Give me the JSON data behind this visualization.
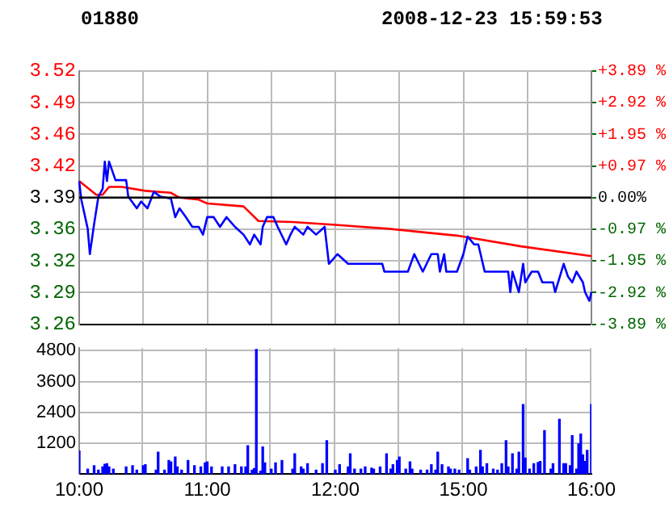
{
  "chart_data": [
    {
      "type": "line",
      "title": "01880",
      "subtitle": "2008-12-23 15:59:53",
      "categories": [
        null,
        null,
        null,
        null,
        null,
        null,
        null,
        null,
        null,
        null,
        null,
        null,
        null,
        null,
        null,
        null,
        null,
        null,
        null,
        null,
        null,
        null,
        null,
        null,
        null,
        null,
        null,
        null,
        null,
        null,
        null,
        null,
        null,
        null,
        null,
        null,
        null,
        null,
        null,
        null,
        null,
        null,
        null,
        null,
        null,
        null,
        null,
        null,
        null,
        null,
        null,
        null,
        null,
        null,
        null,
        null,
        null,
        null,
        null,
        null,
        null,
        null,
        null,
        null,
        null,
        null,
        null,
        null,
        null,
        null,
        null,
        null,
        null,
        null,
        null,
        null,
        null,
        null,
        null,
        null,
        null,
        null,
        null,
        null,
        null,
        null,
        null,
        null,
        null,
        null,
        null,
        null,
        null,
        null,
        null,
        null,
        null,
        null,
        null,
        null,
        null,
        null,
        null,
        null,
        null,
        null,
        null,
        null,
        null,
        null,
        null,
        null,
        null,
        null,
        null,
        null,
        null,
        null,
        null,
        null,
        null,
        null,
        null,
        null,
        null,
        null,
        null,
        null,
        null,
        null,
        null,
        null,
        null,
        null,
        null,
        null,
        null,
        null,
        null,
        null,
        null,
        null,
        null,
        null,
        null,
        null,
        null,
        null,
        null,
        null,
        null,
        null,
        null,
        null,
        null,
        null,
        null,
        null,
        null,
        null,
        null,
        null,
        null,
        null,
        null,
        null,
        null,
        null,
        null,
        null,
        null,
        null,
        null,
        null,
        null,
        null,
        null,
        null,
        null,
        null,
        null,
        null,
        null,
        null,
        null,
        null,
        null,
        null,
        null,
        null,
        null,
        null,
        null,
        null,
        null,
        null,
        null,
        null,
        null,
        null,
        null,
        null,
        null,
        null,
        null,
        null,
        null,
        null,
        null,
        null,
        null,
        null,
        null,
        null,
        null,
        null,
        null,
        null,
        null,
        null,
        null,
        null,
        null,
        null,
        null,
        null,
        null,
        null,
        null,
        null,
        null,
        null,
        null,
        null,
        null,
        null,
        null,
        null,
        null,
        null,
        null
      ],
      "ylim": [
        3.26,
        3.52
      ],
      "yticks": [
        {
          "value": 3.26,
          "label": "3.26"
        },
        {
          "value": 3.2925,
          "label": "3.29"
        },
        {
          "value": 3.325,
          "label": "3.32"
        },
        {
          "value": 3.3575,
          "label": "3.36"
        },
        {
          "value": 3.39,
          "label": "3.39"
        },
        {
          "value": 3.4225,
          "label": "3.42"
        },
        {
          "value": 3.455,
          "label": "3.46"
        },
        {
          "value": 3.4875,
          "label": "3.49"
        },
        {
          "value": 3.52,
          "label": "3.52"
        }
      ],
      "y2lim": [
        -3.89,
        3.89
      ],
      "y2ticks": [
        {
          "value": -3.89,
          "label": "-3.89 %"
        },
        {
          "value": -2.9175,
          "label": "-2.92 %"
        },
        {
          "value": -1.945,
          "label": "-1.95 %"
        },
        {
          "value": -0.9725,
          "label": "-0.97 %"
        },
        {
          "value": 0,
          "label": "0.00%"
        },
        {
          "value": 0.9725,
          "label": "+0.97 %"
        },
        {
          "value": 1.945,
          "label": "+1.95 %"
        },
        {
          "value": 2.9175,
          "label": "+2.92 %"
        },
        {
          "value": 3.89,
          "label": "+3.89 %"
        }
      ],
      "tick_labels": "y",
      "grid": true,
      "marker": "none",
      "ref_lines": [
        {
          "axis": "y",
          "value": 3.39,
          "color": "#000000"
        }
      ],
      "series": [
        {
          "color": "#0000ff",
          "values": [
            3.407,
            3.388,
            null,
            null,
            3.358,
            3.332,
            null,
            3.363,
            null,
            3.391,
            null,
            3.399,
            3.427,
            3.407,
            3.427,
            null,
            null,
            3.408,
            null,
            null,
            null,
            null,
            3.408,
            3.391,
            null,
            null,
            null,
            3.379,
            null,
            3.386,
            null,
            null,
            3.379,
            null,
            null,
            3.396,
            null,
            null,
            3.391,
            null,
            null,
            null,
            null,
            3.389,
            null,
            3.37,
            null,
            3.379,
            null,
            null,
            3.37,
            null,
            null,
            3.36,
            null,
            null,
            3.36,
            null,
            3.352,
            null,
            3.37,
            null,
            null,
            3.37,
            null,
            null,
            3.36,
            null,
            null,
            3.37,
            null,
            null,
            null,
            3.36,
            null,
            null,
            null,
            3.352,
            null,
            null,
            3.342,
            null,
            3.352,
            null,
            null,
            3.342,
            3.36,
            null,
            3.37,
            null,
            null,
            3.37,
            null,
            3.36,
            null,
            null,
            null,
            3.342,
            null,
            3.352,
            null,
            3.36,
            null,
            null,
            null,
            3.352,
            null,
            3.36,
            null,
            null,
            null,
            3.352,
            null,
            null,
            null,
            3.36,
            null,
            3.322,
            null,
            null,
            null,
            3.332,
            null,
            null,
            null,
            null,
            3.322,
            null,
            null,
            null,
            null,
            null,
            null,
            null,
            null,
            null,
            null,
            null,
            null,
            null,
            null,
            null,
            3.322,
            3.314,
            null,
            null,
            null,
            null,
            null,
            null,
            null,
            null,
            null,
            null,
            3.314,
            null,
            null,
            3.332,
            null,
            null,
            null,
            3.314,
            null,
            null,
            null,
            3.332,
            null,
            null,
            3.332,
            3.314,
            null,
            3.332,
            3.314,
            null,
            null,
            null,
            null,
            3.314,
            null,
            null,
            3.332,
            null,
            3.35,
            null,
            null,
            3.342,
            null,
            3.342,
            null,
            null,
            3.314,
            null,
            null,
            null,
            null,
            null,
            null,
            null,
            null,
            null,
            null,
            3.314,
            3.293,
            3.314,
            null,
            null,
            3.293,
            null,
            3.322,
            3.303,
            null,
            null,
            3.314,
            null,
            null,
            3.314,
            null,
            3.303,
            null,
            null,
            null,
            null,
            3.303,
            3.293,
            null,
            null,
            null,
            3.322,
            null,
            3.309,
            null,
            3.303,
            null,
            3.314,
            null,
            null,
            3.303,
            3.293,
            null,
            3.284,
            3.293
          ]
        },
        {
          "color": "#ff0000",
          "values": [
            3.407,
            null,
            null,
            null,
            null,
            null,
            null,
            null,
            3.393,
            null,
            null,
            3.393,
            null,
            null,
            3.401,
            null,
            null,
            null,
            null,
            null,
            3.401,
            null,
            null,
            null,
            null,
            null,
            null,
            null,
            null,
            null,
            null,
            3.397,
            null,
            null,
            null,
            null,
            null,
            null,
            null,
            null,
            null,
            null,
            null,
            3.395,
            null,
            null,
            null,
            3.39,
            null,
            null,
            null,
            null,
            null,
            null,
            null,
            null,
            3.388,
            null,
            null,
            null,
            3.384,
            null,
            null,
            null,
            null,
            null,
            null,
            null,
            null,
            null,
            null,
            null,
            null,
            null,
            null,
            null,
            null,
            3.381,
            null,
            null,
            null,
            null,
            null,
            null,
            3.366,
            null,
            null,
            null,
            null,
            null,
            null,
            null,
            null,
            null,
            null,
            null,
            null,
            null,
            null,
            null,
            3.365,
            null,
            null,
            null,
            null,
            null,
            null,
            null,
            null,
            null,
            null,
            null,
            null,
            null,
            null,
            null,
            null,
            null,
            null,
            null,
            3.362,
            null,
            null,
            null,
            null,
            null,
            null,
            null,
            null,
            null,
            null,
            null,
            null,
            null,
            null,
            null,
            null,
            null,
            null,
            null,
            null,
            null,
            null,
            null,
            null,
            3.358,
            null,
            null,
            null,
            null,
            null,
            null,
            null,
            null,
            null,
            null,
            null,
            null,
            null,
            null,
            null,
            null,
            null,
            null,
            null,
            null,
            null,
            null,
            null,
            null,
            null,
            null,
            null,
            null,
            null,
            null,
            null,
            3.351,
            null,
            null,
            null,
            null,
            null,
            null,
            null,
            null,
            null,
            null,
            null,
            null,
            null,
            null,
            null,
            null,
            null,
            null,
            null,
            null,
            null,
            null,
            null,
            null,
            null,
            null,
            null,
            null,
            null,
            3.34,
            null,
            null,
            null,
            null,
            null,
            null,
            null,
            null,
            null,
            null,
            null,
            null,
            null,
            null,
            null,
            null,
            null,
            null,
            null,
            null,
            null,
            null,
            null,
            null,
            null,
            null,
            null,
            null,
            null,
            null,
            null,
            null,
            3.33
          ]
        }
      ]
    },
    {
      "type": "bar",
      "color": "#0000ff",
      "categories": [
        "10:00",
        null,
        null,
        null,
        null,
        null,
        null,
        null,
        null,
        null,
        null,
        null,
        null,
        null,
        null,
        null,
        null,
        null,
        null,
        null,
        null,
        null,
        null,
        null,
        null,
        null,
        null,
        null,
        null,
        null,
        null,
        null,
        null,
        null,
        null,
        null,
        null,
        null,
        null,
        null,
        null,
        null,
        null,
        null,
        null,
        null,
        null,
        null,
        null,
        null,
        null,
        null,
        null,
        null,
        null,
        null,
        null,
        null,
        null,
        null,
        "11:00",
        null,
        null,
        null,
        null,
        null,
        null,
        null,
        null,
        null,
        null,
        null,
        null,
        null,
        null,
        null,
        null,
        null,
        null,
        null,
        null,
        null,
        null,
        null,
        null,
        null,
        null,
        null,
        null,
        null,
        null,
        null,
        null,
        null,
        null,
        null,
        null,
        null,
        null,
        null,
        null,
        null,
        null,
        null,
        null,
        null,
        null,
        null,
        null,
        null,
        null,
        null,
        null,
        null,
        null,
        null,
        null,
        null,
        null,
        null,
        "12:00",
        null,
        null,
        null,
        null,
        null,
        null,
        null,
        null,
        null,
        null,
        null,
        null,
        null,
        null,
        null,
        null,
        null,
        null,
        null,
        null,
        null,
        null,
        null,
        null,
        null,
        null,
        null,
        null,
        null,
        null,
        null,
        null,
        null,
        null,
        null,
        null,
        null,
        null,
        null,
        null,
        null,
        null,
        null,
        null,
        null,
        null,
        null,
        null,
        null,
        null,
        null,
        null,
        null,
        null,
        null,
        null,
        null,
        null,
        null,
        "15:00",
        null,
        null,
        null,
        null,
        null,
        null,
        null,
        null,
        null,
        null,
        null,
        null,
        null,
        null,
        null,
        null,
        null,
        null,
        null,
        null,
        null,
        null,
        null,
        null,
        null,
        null,
        null,
        null,
        null,
        null,
        null,
        null,
        null,
        null,
        null,
        null,
        null,
        null,
        null,
        null,
        null,
        null,
        null,
        null,
        null,
        null,
        null,
        null,
        null,
        null,
        null,
        null,
        null,
        null,
        null,
        null,
        null,
        null,
        null,
        "16:00"
      ],
      "ylim": [
        0,
        4900
      ],
      "yticks": [
        1200,
        2400,
        3600,
        4800
      ],
      "grid": true,
      "values": [
        900,
        null,
        null,
        null,
        190,
        null,
        null,
        320,
        null,
        150,
        null,
        280,
        380,
        400,
        280,
        null,
        190,
        null,
        null,
        null,
        null,
        null,
        280,
        null,
        null,
        320,
        null,
        150,
        null,
        null,
        320,
        360,
        null,
        null,
        null,
        null,
        150,
        850,
        null,
        null,
        150,
        null,
        530,
        470,
        null,
        660,
        280,
        null,
        150,
        null,
        null,
        530,
        null,
        null,
        320,
        null,
        null,
        280,
        null,
        430,
        470,
        null,
        280,
        null,
        null,
        null,
        null,
        280,
        null,
        null,
        280,
        null,
        null,
        360,
        null,
        null,
        280,
        null,
        280,
        1100,
        null,
        150,
        210,
        4850,
        null,
        110,
        1050,
        430,
        null,
        null,
        190,
        null,
        430,
        null,
        null,
        530,
        null,
        null,
        null,
        null,
        190,
        790,
        null,
        null,
        280,
        190,
        null,
        400,
        null,
        null,
        null,
        150,
        null,
        null,
        400,
        null,
        1300,
        null,
        null,
        null,
        150,
        null,
        360,
        null,
        null,
        null,
        280,
        790,
        null,
        190,
        null,
        null,
        190,
        null,
        280,
        null,
        null,
        230,
        190,
        null,
        null,
        280,
        null,
        null,
        790,
        null,
        190,
        360,
        null,
        530,
        660,
        null,
        null,
        190,
        null,
        470,
        190,
        null,
        null,
        null,
        150,
        null,
        null,
        150,
        null,
        360,
        null,
        150,
        850,
        null,
        360,
        null,
        null,
        280,
        190,
        null,
        190,
        null,
        150,
        null,
        null,
        null,
        600,
        150,
        null,
        null,
        280,
        null,
        920,
        280,
        null,
        400,
        null,
        null,
        190,
        null,
        150,
        null,
        400,
        null,
        1300,
        280,
        null,
        790,
        null,
        190,
        850,
        null,
        2700,
        620,
        null,
        190,
        null,
        400,
        null,
        450,
        490,
        null,
        1690,
        null,
        null,
        190,
        400,
        null,
        null,
        2130,
        null,
        400,
        400,
        null,
        320,
        1490,
        null,
        190,
        1170,
        1560,
        750,
        490,
        920,
        null,
        2700
      ]
    }
  ]
}
